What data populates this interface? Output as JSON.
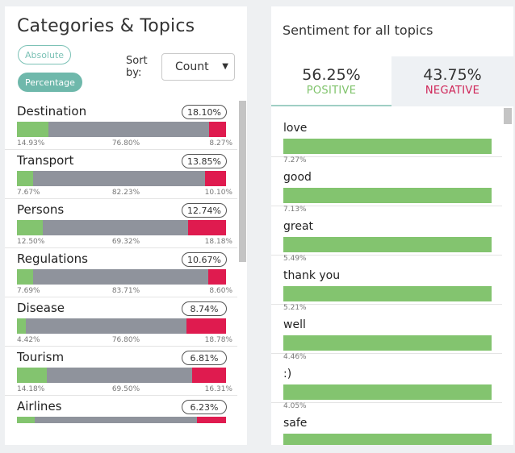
{
  "categories_panel": {
    "title": "Categories & Topics",
    "absolute_label": "Absolute",
    "percentage_label": "Percentage",
    "sort_label": "Sort\nby:",
    "sort_value": "Count",
    "topics": [
      {
        "name": "Destination",
        "share": "18.10%",
        "pos": "14.93%",
        "neu": "76.80%",
        "neg": "8.27%",
        "pos_v": 14.93,
        "neu_v": 76.8,
        "neg_v": 8.27
      },
      {
        "name": "Transport",
        "share": "13.85%",
        "pos": "7.67%",
        "neu": "82.23%",
        "neg": "10.10%",
        "pos_v": 7.67,
        "neu_v": 82.23,
        "neg_v": 10.1
      },
      {
        "name": "Persons",
        "share": "12.74%",
        "pos": "12.50%",
        "neu": "69.32%",
        "neg": "18.18%",
        "pos_v": 12.5,
        "neu_v": 69.32,
        "neg_v": 18.18
      },
      {
        "name": "Regulations",
        "share": "10.67%",
        "pos": "7.69%",
        "neu": "83.71%",
        "neg": "8.60%",
        "pos_v": 7.69,
        "neu_v": 83.71,
        "neg_v": 8.6
      },
      {
        "name": "Disease",
        "share": "8.74%",
        "pos": "4.42%",
        "neu": "76.80%",
        "neg": "18.78%",
        "pos_v": 4.42,
        "neu_v": 76.8,
        "neg_v": 18.78
      },
      {
        "name": "Tourism",
        "share": "6.81%",
        "pos": "14.18%",
        "neu": "69.50%",
        "neg": "16.31%",
        "pos_v": 14.18,
        "neu_v": 69.5,
        "neg_v": 16.31
      },
      {
        "name": "Airlines",
        "share": "6.23%",
        "pos": "",
        "neu": "",
        "neg": "",
        "pos_v": 8.5,
        "neu_v": 77.5,
        "neg_v": 14.0
      }
    ]
  },
  "sentiment_panel": {
    "title": "Sentiment for all topics",
    "positive_value": "56.25%",
    "positive_label": "POSITIVE",
    "negative_value": "43.75%",
    "negative_label": "NEGATIVE",
    "words": [
      {
        "name": "love",
        "pct": "7.27%"
      },
      {
        "name": "good",
        "pct": "7.13%"
      },
      {
        "name": "great",
        "pct": "5.49%"
      },
      {
        "name": "thank you",
        "pct": "5.21%"
      },
      {
        "name": "well",
        "pct": "4.46%"
      },
      {
        "name": ":)",
        "pct": "4.05%"
      },
      {
        "name": "safe",
        "pct": ""
      }
    ]
  },
  "colors": {
    "positive": "#83c46f",
    "neutral": "#8f939c",
    "negative": "#df1b4f",
    "accent": "#6fb8ab"
  }
}
